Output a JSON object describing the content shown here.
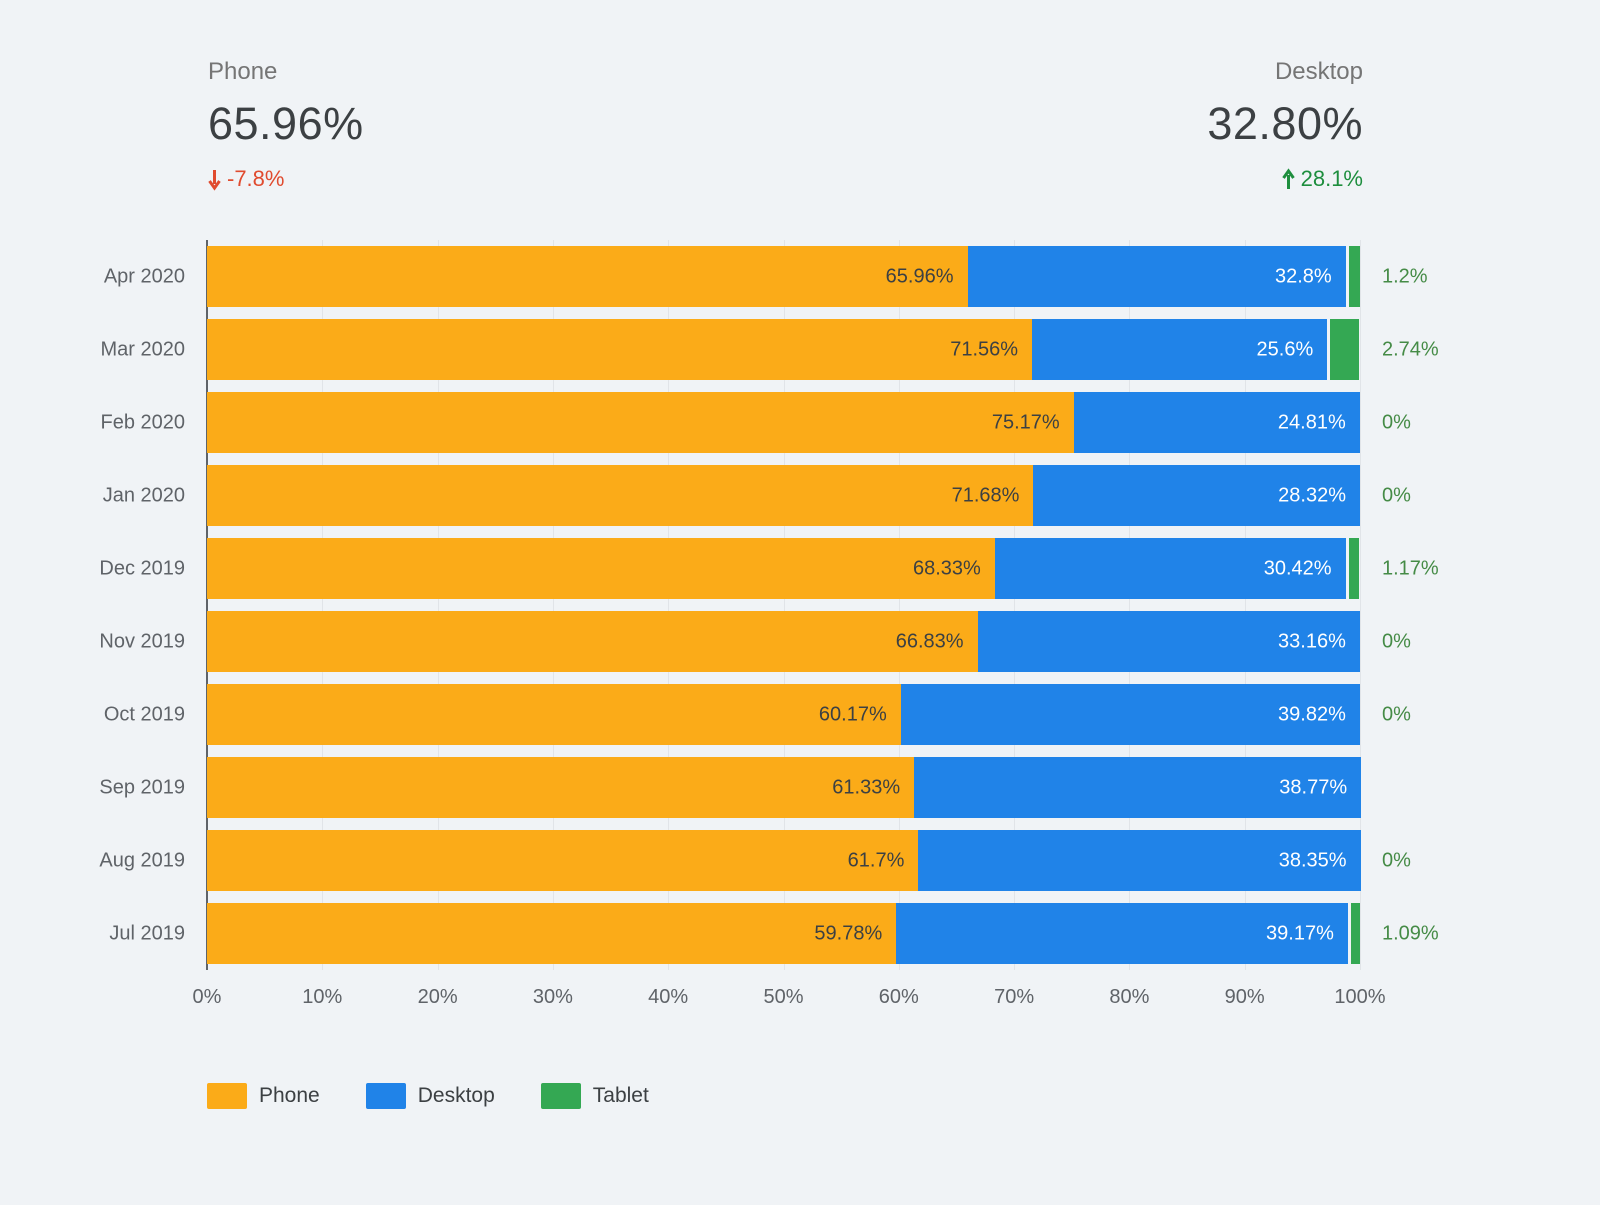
{
  "header": {
    "phone": {
      "label": "Phone",
      "value": "65.96%",
      "delta": "-7.8%",
      "direction": "down"
    },
    "desktop": {
      "label": "Desktop",
      "value": "32.80%",
      "delta": "28.1%",
      "direction": "up"
    }
  },
  "colors": {
    "phone": "#FBAB18",
    "desktop": "#2083E8",
    "tablet": "#34A853",
    "negative": "#E04B2F",
    "positive": "#1E8E3E",
    "tablet_label": "#458B46",
    "background": "#F0F3F6"
  },
  "chart_data": {
    "type": "bar",
    "orientation": "horizontal",
    "stacked": true,
    "title": "",
    "xlabel": "",
    "ylabel": "",
    "xlim": [
      0,
      100
    ],
    "grid": true,
    "legend_position": "bottom",
    "categories": [
      "Apr 2020",
      "Mar 2020",
      "Feb 2020",
      "Jan 2020",
      "Dec 2019",
      "Nov 2019",
      "Oct 2019",
      "Sep 2019",
      "Aug 2019",
      "Jul 2019"
    ],
    "series": [
      {
        "name": "Phone",
        "color": "#FBAB18",
        "values": [
          65.96,
          71.56,
          75.17,
          71.68,
          68.33,
          66.83,
          60.17,
          61.33,
          61.7,
          59.78
        ],
        "labels": [
          "65.96%",
          "71.56%",
          "75.17%",
          "71.68%",
          "68.33%",
          "66.83%",
          "60.17%",
          "61.33%",
          "61.7%",
          "59.78%"
        ]
      },
      {
        "name": "Desktop",
        "color": "#2083E8",
        "values": [
          32.8,
          25.6,
          24.81,
          28.32,
          30.42,
          33.16,
          39.82,
          38.77,
          38.35,
          39.17
        ],
        "labels": [
          "32.8%",
          "25.6%",
          "24.81%",
          "28.32%",
          "30.42%",
          "33.16%",
          "39.82%",
          "38.77%",
          "38.35%",
          "39.17%"
        ]
      },
      {
        "name": "Tablet",
        "color": "#34A853",
        "values": [
          1.2,
          2.74,
          0,
          0,
          1.17,
          0,
          0,
          0,
          0,
          1.09
        ],
        "labels": [
          "1.2%",
          "2.74%",
          "0%",
          "0%",
          "1.17%",
          "0%",
          "0%",
          "",
          "0%",
          "1.09%"
        ]
      }
    ],
    "x_ticks": [
      "0%",
      "10%",
      "20%",
      "30%",
      "40%",
      "50%",
      "60%",
      "70%",
      "80%",
      "90%",
      "100%"
    ]
  },
  "legend": {
    "items": [
      {
        "label": "Phone",
        "color": "#FBAB18"
      },
      {
        "label": "Desktop",
        "color": "#2083E8"
      },
      {
        "label": "Tablet",
        "color": "#34A853"
      }
    ]
  }
}
